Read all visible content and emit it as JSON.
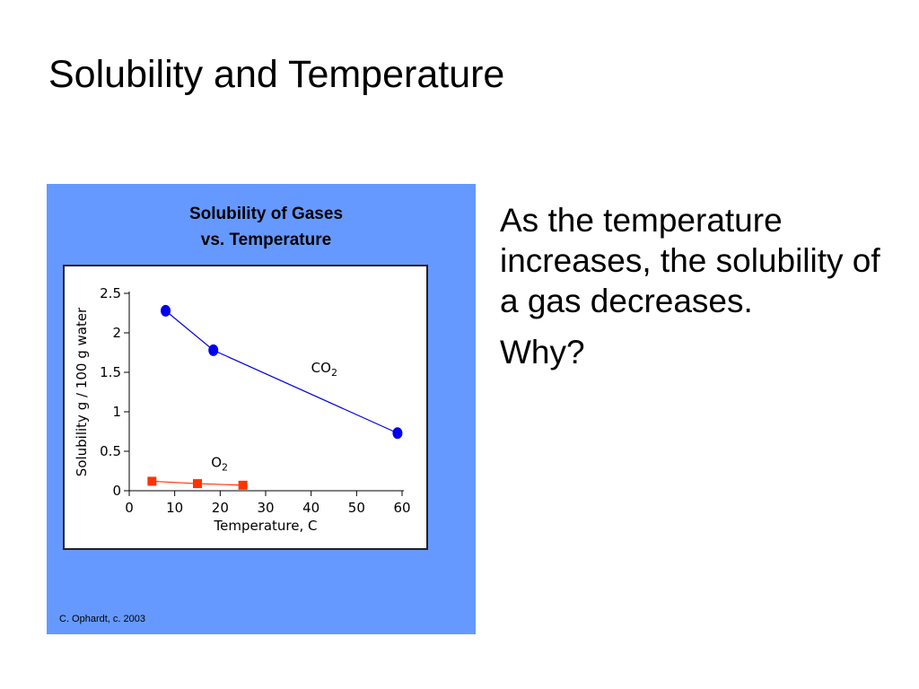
{
  "slide": {
    "title": "Solubility and Temperature",
    "bullets": [
      "As the temperature increases, the solubility of a gas decreases.",
      "Why?"
    ]
  },
  "figure": {
    "background_color": "#6699ff",
    "credit": "C. Ophardt, c. 2003"
  },
  "chart_data": {
    "type": "line",
    "title_lines": [
      "Solubility of Gases",
      "vs. Temperature"
    ],
    "xlabel": "Temperature, C",
    "ylabel": "Solubility g / 100 g water",
    "xlim": [
      0,
      60
    ],
    "ylim": [
      0,
      2.5
    ],
    "x_ticks": [
      0,
      10,
      20,
      30,
      40,
      50,
      60
    ],
    "y_ticks": [
      0,
      0.5,
      1,
      1.5,
      2,
      2.5
    ],
    "y_tick_labels": [
      "0",
      "0.5",
      "1",
      "1.5",
      "2",
      "2.5"
    ],
    "grid": false,
    "series": [
      {
        "label_main": "CO",
        "label_sub": "2",
        "color": "#0000ee",
        "marker": "circle",
        "label_x": 40,
        "label_y": 1.5,
        "points": [
          [
            8,
            2.28
          ],
          [
            18.5,
            1.78
          ],
          [
            59,
            0.73
          ]
        ]
      },
      {
        "label_main": "O",
        "label_sub": "2",
        "color": "#ff3300",
        "marker": "square",
        "label_x": 18,
        "label_y": 0.3,
        "points": [
          [
            5,
            0.12
          ],
          [
            15,
            0.09
          ],
          [
            25,
            0.07
          ]
        ]
      }
    ]
  }
}
